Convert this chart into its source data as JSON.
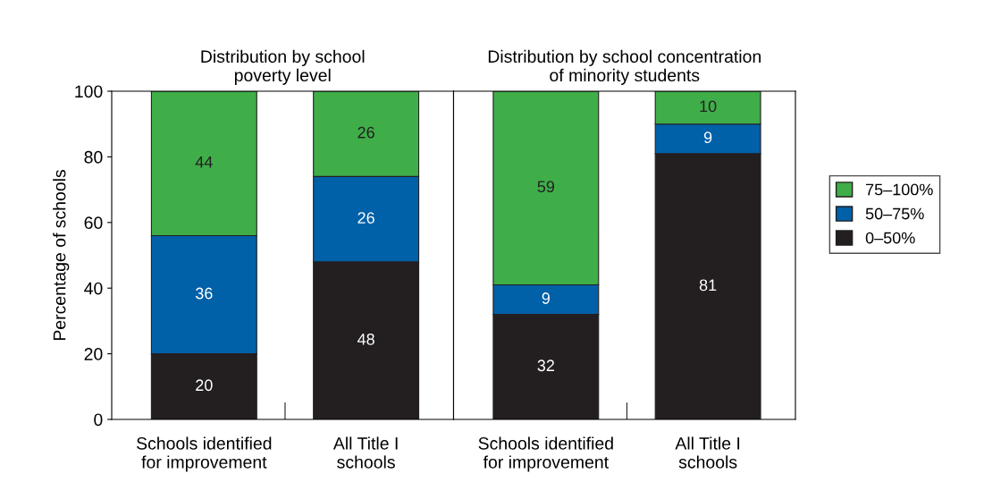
{
  "chart_data": [
    {
      "type": "bar",
      "stacked": true,
      "title": "Distribution by school\npoverty level",
      "ylabel": "Percentage of schools",
      "categories": [
        "Schools identified\nfor improvement",
        "All Title I\nschools"
      ],
      "ylim": [
        0,
        100
      ],
      "yticks": [
        0,
        20,
        40,
        60,
        80,
        100
      ],
      "grid": false,
      "data_labels": true,
      "legend": "right",
      "series": [
        {
          "name": "0–50%",
          "color": "#231f20",
          "values": [
            20,
            48
          ]
        },
        {
          "name": "50–75%",
          "color": "#0060a8",
          "values": [
            36,
            26
          ]
        },
        {
          "name": "75–100%",
          "color": "#3fae49",
          "values": [
            44,
            26
          ]
        }
      ]
    },
    {
      "type": "bar",
      "stacked": true,
      "title": "Distribution by school concentration\nof minority students",
      "categories": [
        "Schools identified\nfor improvement",
        "All Title I\nschools"
      ],
      "ylim": [
        0,
        100
      ],
      "yticks": [
        0,
        20,
        40,
        60,
        80,
        100
      ],
      "tick_labels": "x",
      "grid": false,
      "data_labels": true,
      "series": [
        {
          "color": "#231f20",
          "values": [
            32,
            81
          ]
        },
        {
          "color": "#0060a8",
          "values": [
            9,
            9
          ]
        },
        {
          "color": "#3fae49",
          "values": [
            59,
            10
          ]
        }
      ]
    }
  ]
}
